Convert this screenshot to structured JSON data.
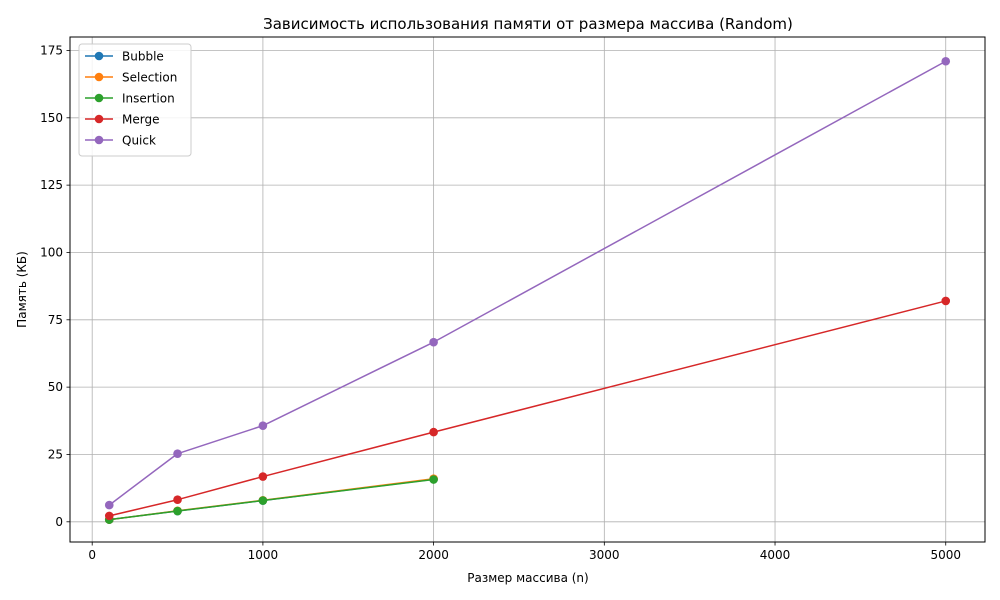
{
  "chart_data": {
    "type": "line",
    "title": "Зависимость использования памяти от размера массива (Random)",
    "xlabel": "Размер массива (n)",
    "ylabel": "Память (КБ)",
    "xlim": [
      -130,
      5230
    ],
    "ylim": [
      -7.5,
      180
    ],
    "xticks": [
      0,
      1000,
      2000,
      3000,
      4000,
      5000
    ],
    "xtick_labels": [
      "0",
      "1000",
      "2000",
      "3000",
      "4000",
      "5000"
    ],
    "yticks": [
      0,
      25,
      50,
      75,
      100,
      125,
      150,
      175
    ],
    "ytick_labels": [
      "0",
      "25",
      "50",
      "75",
      "100",
      "125",
      "150",
      "175"
    ],
    "grid": true,
    "legend_position": "top-left",
    "series": [
      {
        "name": "Bubble",
        "color": "#1f77b4",
        "x": [
          100,
          500,
          1000,
          2000
        ],
        "y": [
          0.8,
          4.0,
          7.9,
          15.8
        ]
      },
      {
        "name": "Selection",
        "color": "#ff7f0e",
        "x": [
          100,
          500,
          1000,
          2000
        ],
        "y": [
          0.8,
          4.1,
          8.0,
          16.0
        ]
      },
      {
        "name": "Insertion",
        "color": "#2ca02c",
        "x": [
          100,
          500,
          1000,
          2000
        ],
        "y": [
          0.8,
          4.0,
          7.9,
          15.7
        ]
      },
      {
        "name": "Merge",
        "color": "#d62728",
        "x": [
          100,
          500,
          1000,
          2000,
          5000
        ],
        "y": [
          2.2,
          8.2,
          16.8,
          33.3,
          82.0
        ]
      },
      {
        "name": "Quick",
        "color": "#9467bd",
        "x": [
          100,
          500,
          1000,
          2000,
          5000
        ],
        "y": [
          6.2,
          25.3,
          35.7,
          66.7,
          171.0
        ]
      }
    ]
  }
}
